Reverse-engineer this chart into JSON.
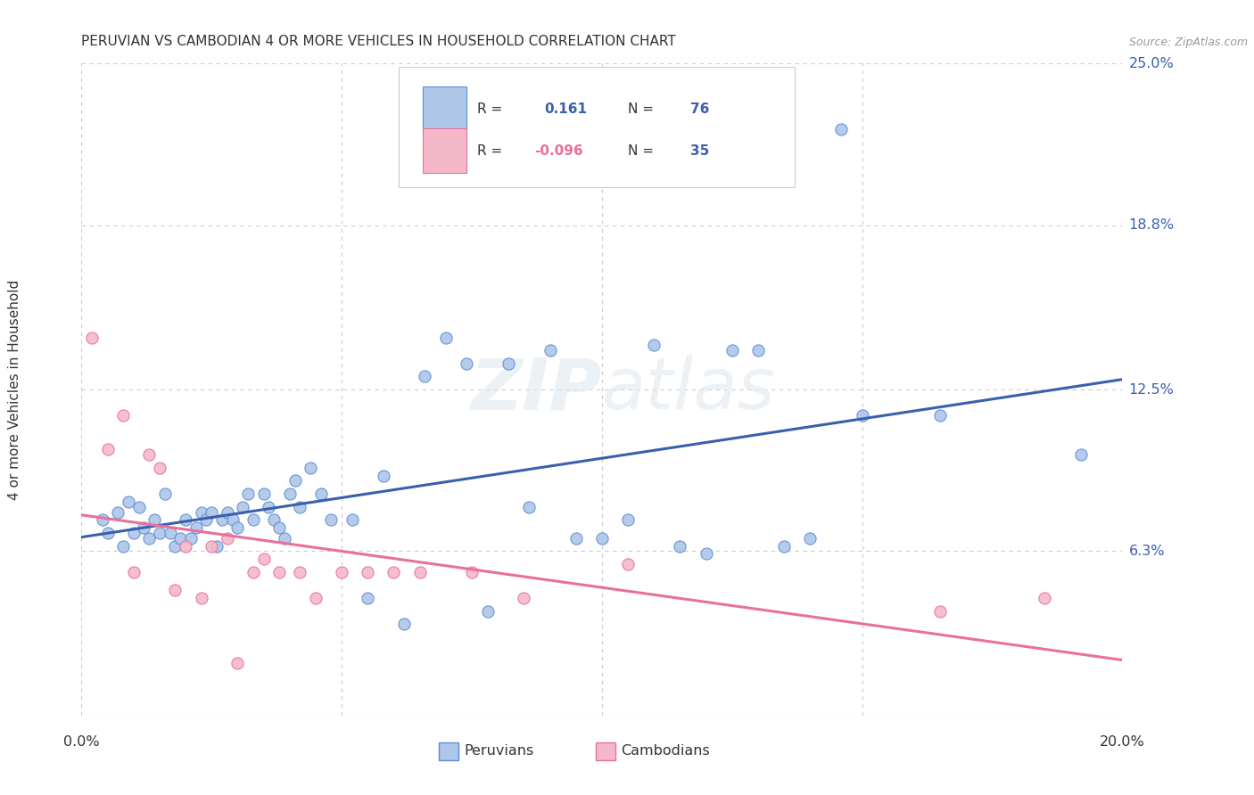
{
  "title": "PERUVIAN VS CAMBODIAN 4 OR MORE VEHICLES IN HOUSEHOLD CORRELATION CHART",
  "source": "Source: ZipAtlas.com",
  "ylabel": "4 or more Vehicles in Household",
  "xlim": [
    0.0,
    20.0
  ],
  "ylim": [
    0.0,
    25.0
  ],
  "x_left_label": "0.0%",
  "x_right_label": "20.0%",
  "ylabel_ticks_right": [
    "25.0%",
    "18.8%",
    "12.5%",
    "6.3%"
  ],
  "ylabel_tick_vals_right": [
    25.0,
    18.8,
    12.5,
    6.3
  ],
  "peruvian_color": "#aec6e8",
  "cambodian_color": "#f4b8c8",
  "peruvian_edge_color": "#5b8dd9",
  "cambodian_edge_color": "#e8709a",
  "peruvian_line_color": "#3a5fad",
  "cambodian_line_color": "#e8709a",
  "peruvian_R": "0.161",
  "peruvian_N": "76",
  "cambodian_R": "-0.096",
  "cambodian_N": "35",
  "legend_peruvian_label": "Peruvians",
  "legend_cambodian_label": "Cambodians",
  "watermark_part1": "ZIP",
  "watermark_part2": "atlas",
  "background_color": "#ffffff",
  "grid_color": "#cccccc",
  "peruvian_x": [
    0.4,
    0.5,
    0.7,
    0.8,
    0.9,
    1.0,
    1.1,
    1.2,
    1.3,
    1.4,
    1.5,
    1.6,
    1.7,
    1.8,
    1.9,
    2.0,
    2.1,
    2.2,
    2.3,
    2.4,
    2.5,
    2.6,
    2.7,
    2.8,
    2.9,
    3.0,
    3.1,
    3.2,
    3.3,
    3.5,
    3.6,
    3.7,
    3.8,
    3.9,
    4.0,
    4.1,
    4.2,
    4.4,
    4.6,
    4.8,
    5.2,
    5.5,
    5.8,
    6.2,
    6.6,
    7.0,
    7.4,
    7.8,
    8.2,
    8.6,
    9.0,
    9.5,
    10.0,
    10.5,
    11.0,
    11.5,
    12.0,
    12.5,
    13.0,
    13.5,
    14.0,
    14.6,
    15.0,
    16.5,
    19.2
  ],
  "peruvian_y": [
    7.5,
    7.0,
    7.8,
    6.5,
    8.2,
    7.0,
    8.0,
    7.2,
    6.8,
    7.5,
    7.0,
    8.5,
    7.0,
    6.5,
    6.8,
    7.5,
    6.8,
    7.2,
    7.8,
    7.5,
    7.8,
    6.5,
    7.5,
    7.8,
    7.5,
    7.2,
    8.0,
    8.5,
    7.5,
    8.5,
    8.0,
    7.5,
    7.2,
    6.8,
    8.5,
    9.0,
    8.0,
    9.5,
    8.5,
    7.5,
    7.5,
    4.5,
    9.2,
    3.5,
    13.0,
    14.5,
    13.5,
    4.0,
    13.5,
    8.0,
    14.0,
    6.8,
    6.8,
    7.5,
    14.2,
    6.5,
    6.2,
    14.0,
    14.0,
    6.5,
    6.8,
    22.5,
    11.5,
    11.5,
    10.0
  ],
  "cambodian_x": [
    0.2,
    0.5,
    0.8,
    1.0,
    1.3,
    1.5,
    1.8,
    2.0,
    2.3,
    2.5,
    2.8,
    3.0,
    3.3,
    3.5,
    3.8,
    4.2,
    4.5,
    5.0,
    5.5,
    6.0,
    6.5,
    7.5,
    8.5,
    10.5,
    16.5,
    18.5
  ],
  "cambodian_y": [
    14.5,
    10.2,
    11.5,
    5.5,
    10.0,
    9.5,
    4.8,
    6.5,
    4.5,
    6.5,
    6.8,
    2.0,
    5.5,
    6.0,
    5.5,
    5.5,
    4.5,
    5.5,
    5.5,
    5.5,
    5.5,
    5.5,
    4.5,
    5.8,
    4.0,
    4.5
  ]
}
